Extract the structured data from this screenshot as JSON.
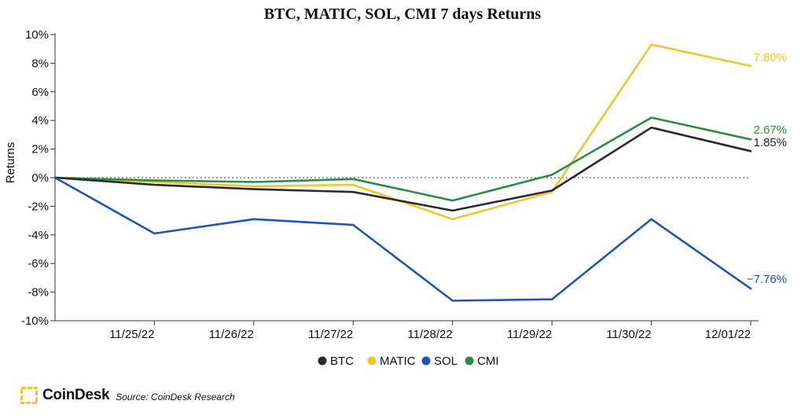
{
  "chart_data": {
    "type": "line",
    "title": "BTC, MATIC, SOL, CMI 7 days Returns",
    "ylabel": "Returns",
    "xlabel": "",
    "x_labels": [
      "11/25/22",
      "11/26/22",
      "11/27/22",
      "11/28/22",
      "11/29/22",
      "11/30/22",
      "12/01/22"
    ],
    "ylim": [
      -10,
      10
    ],
    "yticks": [
      10,
      8,
      6,
      4,
      2,
      0,
      -2,
      -4,
      -6,
      -8,
      -10
    ],
    "ytick_labels": [
      "10%",
      "8%",
      "6%",
      "4%",
      "2%",
      "0%",
      "-2%",
      "-4%",
      "-6%",
      "-8%",
      "-10%"
    ],
    "zero_line": "dotted",
    "legend_position": "bottom-center",
    "series": [
      {
        "name": "BTC",
        "color": "#2b2b2b",
        "values": [
          0,
          -0.5,
          -0.8,
          -1.0,
          -2.3,
          -0.9,
          3.5,
          1.85
        ],
        "end_label": "1.85%"
      },
      {
        "name": "MATIC",
        "color": "#f4c430",
        "values": [
          0,
          -0.3,
          -0.6,
          -0.5,
          -2.9,
          -1.0,
          9.3,
          7.8
        ],
        "end_label": "7.80%"
      },
      {
        "name": "SOL",
        "color": "#1f55b5",
        "values": [
          0,
          -3.9,
          -2.9,
          -3.3,
          -8.6,
          -8.5,
          -2.9,
          -7.76
        ],
        "end_label": "−7.76%"
      },
      {
        "name": "CMI",
        "color": "#2e8b45",
        "values": [
          0,
          -0.2,
          -0.3,
          -0.1,
          -1.6,
          0.2,
          4.2,
          2.67
        ],
        "end_label": "2.67%"
      }
    ]
  },
  "footer": {
    "brand": "CoinDesk",
    "source": "Source: CoinDesk Research",
    "brand_color": "#f4c430"
  }
}
